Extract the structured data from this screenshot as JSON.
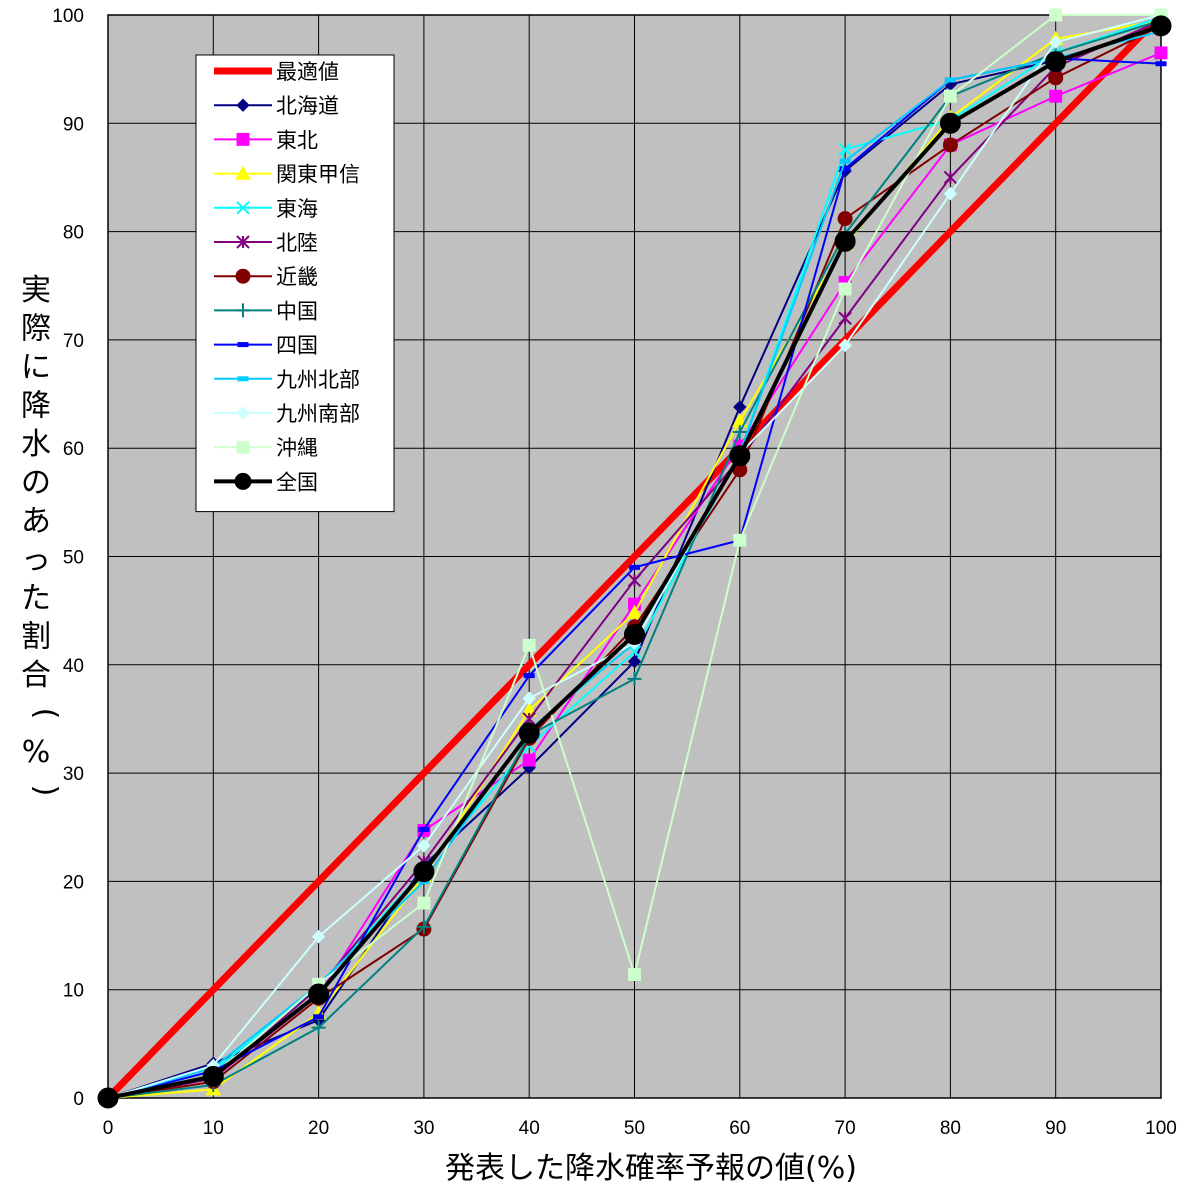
{
  "chart_data": {
    "type": "line",
    "title": "",
    "xlabel": "発表した降水確率予報の値(%)",
    "ylabel": "実際に降水のあった割合(%)",
    "x": [
      0,
      10,
      20,
      30,
      40,
      50,
      60,
      70,
      80,
      90,
      100
    ],
    "xlim": [
      0,
      100
    ],
    "ylim": [
      0,
      100
    ],
    "x_ticks": [
      0,
      10,
      20,
      30,
      40,
      50,
      60,
      70,
      80,
      90,
      100
    ],
    "y_ticks": [
      0,
      10,
      20,
      30,
      40,
      50,
      60,
      70,
      80,
      90,
      100
    ],
    "grid": true,
    "plot_background": "#C0C0C0",
    "legend_position": "top-left",
    "series": [
      {
        "name": "最適値",
        "color": "#FF0000",
        "marker": "none",
        "width": 7,
        "values": [
          0,
          10,
          20,
          30,
          40,
          50,
          60,
          70,
          80,
          90,
          100
        ]
      },
      {
        "name": "北海道",
        "color": "#000080",
        "marker": "diamond",
        "width": 2,
        "values": [
          0,
          3.2,
          7.2,
          21.5,
          30.5,
          40.3,
          63.8,
          85.6,
          93.6,
          95.8,
          99.0
        ]
      },
      {
        "name": "東北",
        "color": "#FF00FF",
        "marker": "square",
        "width": 2,
        "values": [
          0,
          1.8,
          9.5,
          24.7,
          31.2,
          45.6,
          60.2,
          75.3,
          88.0,
          92.5,
          96.5
        ]
      },
      {
        "name": "関東甲信",
        "color": "#FFFF00",
        "marker": "triangle",
        "width": 2,
        "values": [
          0,
          0.8,
          7.8,
          20.5,
          35.8,
          44.8,
          62.5,
          78.8,
          90.5,
          97.8,
          99.5
        ]
      },
      {
        "name": "東海",
        "color": "#00FFFF",
        "marker": "x",
        "width": 2,
        "values": [
          0,
          2.5,
          10.3,
          21.0,
          32.5,
          41.2,
          59.5,
          87.6,
          90.3,
          96.5,
          99.8
        ]
      },
      {
        "name": "北陸",
        "color": "#800080",
        "marker": "star",
        "width": 2,
        "values": [
          0,
          1.8,
          10.2,
          21.8,
          35.0,
          47.8,
          59.0,
          72.0,
          85.0,
          95.2,
          99.5
        ]
      },
      {
        "name": "近畿",
        "color": "#800000",
        "marker": "circle",
        "width": 2,
        "values": [
          0,
          1.5,
          9.2,
          15.6,
          33.2,
          43.5,
          58.0,
          81.2,
          88.0,
          94.2,
          99.0
        ]
      },
      {
        "name": "中国",
        "color": "#008080",
        "marker": "plus",
        "width": 2,
        "values": [
          0,
          1.2,
          6.5,
          15.8,
          33.5,
          38.7,
          61.5,
          79.8,
          92.5,
          96.5,
          99.5
        ]
      },
      {
        "name": "四国",
        "color": "#0000FF",
        "marker": "dash",
        "width": 2,
        "values": [
          0,
          2.5,
          7.5,
          24.8,
          39.0,
          49.0,
          51.5,
          85.8,
          94.0,
          96.0,
          95.5
        ]
      },
      {
        "name": "九州北部",
        "color": "#00CCFF",
        "marker": "dash",
        "width": 2,
        "values": [
          0,
          2.8,
          10.5,
          20.0,
          34.0,
          42.0,
          59.5,
          86.5,
          94.0,
          96.0,
          98.5
        ]
      },
      {
        "name": "九州南部",
        "color": "#CCFFFF",
        "marker": "diamond",
        "width": 2,
        "values": [
          0,
          3.0,
          14.9,
          23.3,
          36.9,
          42.0,
          59.5,
          69.5,
          83.5,
          97.5,
          100.0
        ]
      },
      {
        "name": "沖縄",
        "color": "#CCFFCC",
        "marker": "square",
        "width": 2,
        "values": [
          0,
          2.0,
          10.5,
          18.0,
          41.8,
          11.4,
          51.5,
          74.7,
          92.5,
          100.0,
          100.0
        ]
      },
      {
        "name": "全国",
        "color": "#000000",
        "marker": "circle",
        "width": 4,
        "values": [
          0,
          2.0,
          9.6,
          20.9,
          33.7,
          42.8,
          59.3,
          79.1,
          90.0,
          95.7,
          99.0
        ]
      }
    ]
  }
}
